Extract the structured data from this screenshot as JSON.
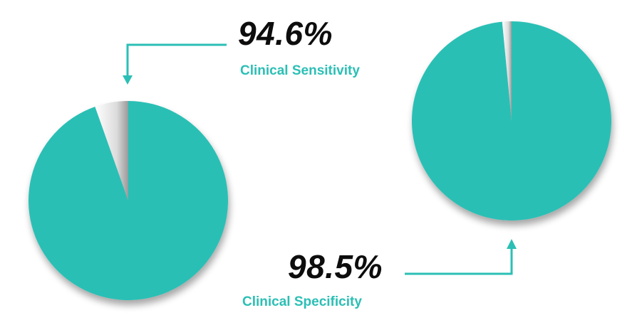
{
  "colors": {
    "accent": "#2bbfb5",
    "remainder": "#ffffff",
    "value_text": "#0d0d0d"
  },
  "chart_data": [
    {
      "type": "pie",
      "title": "",
      "categories": [
        "Clinical Sensitivity",
        ""
      ],
      "values": [
        94.6,
        5.4
      ],
      "value_label": "94.6%",
      "label": "Clinical Sensitivity"
    },
    {
      "type": "pie",
      "title": "",
      "categories": [
        "Clinical Specificity",
        ""
      ],
      "values": [
        98.5,
        1.5
      ],
      "value_label": "98.5%",
      "label": "Clinical Specificity"
    }
  ]
}
